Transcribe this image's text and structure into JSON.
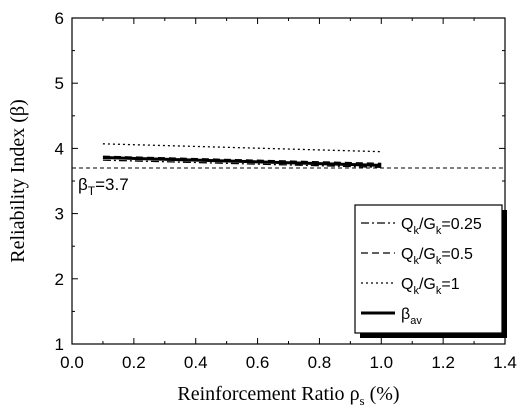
{
  "chart_data": {
    "type": "line",
    "title": "",
    "xlabel_main": "Reinforcement Ratio ",
    "xlabel_symbol": "ρ",
    "xlabel_sub": "s",
    "xlabel_unit": " (%)",
    "ylabel": "Reliability Index (β)",
    "xlim": [
      0.0,
      1.4
    ],
    "ylim": [
      1,
      6
    ],
    "xticks": [
      "0.0",
      "0.2",
      "0.4",
      "0.6",
      "0.8",
      "1.0",
      "1.2",
      "1.4"
    ],
    "yticks": [
      "1",
      "2",
      "3",
      "4",
      "5",
      "6"
    ],
    "grid": false,
    "legend_position": "bottom-right",
    "target": {
      "value": 3.7,
      "symbol": "β",
      "sub": "T",
      "text": "=3.7"
    },
    "series": [
      {
        "name_parts": [
          "Q",
          "k",
          "/G",
          "k",
          "=0.25"
        ],
        "style": "dashdot",
        "x": [
          0.1,
          1.0
        ],
        "y": [
          3.82,
          3.71
        ]
      },
      {
        "name_parts": [
          "Q",
          "k",
          "/G",
          "k",
          "=0.5"
        ],
        "style": "dashed",
        "x": [
          0.1,
          1.0
        ],
        "y": [
          3.88,
          3.77
        ]
      },
      {
        "name_parts": [
          "Q",
          "k",
          "/G",
          "k",
          "=1"
        ],
        "style": "dotted",
        "x": [
          0.1,
          1.0
        ],
        "y": [
          4.07,
          3.95
        ]
      },
      {
        "name_parts": [
          "β",
          "av"
        ],
        "style": "solid",
        "x": [
          0.1,
          1.0
        ],
        "y": [
          3.86,
          3.74
        ]
      }
    ]
  }
}
